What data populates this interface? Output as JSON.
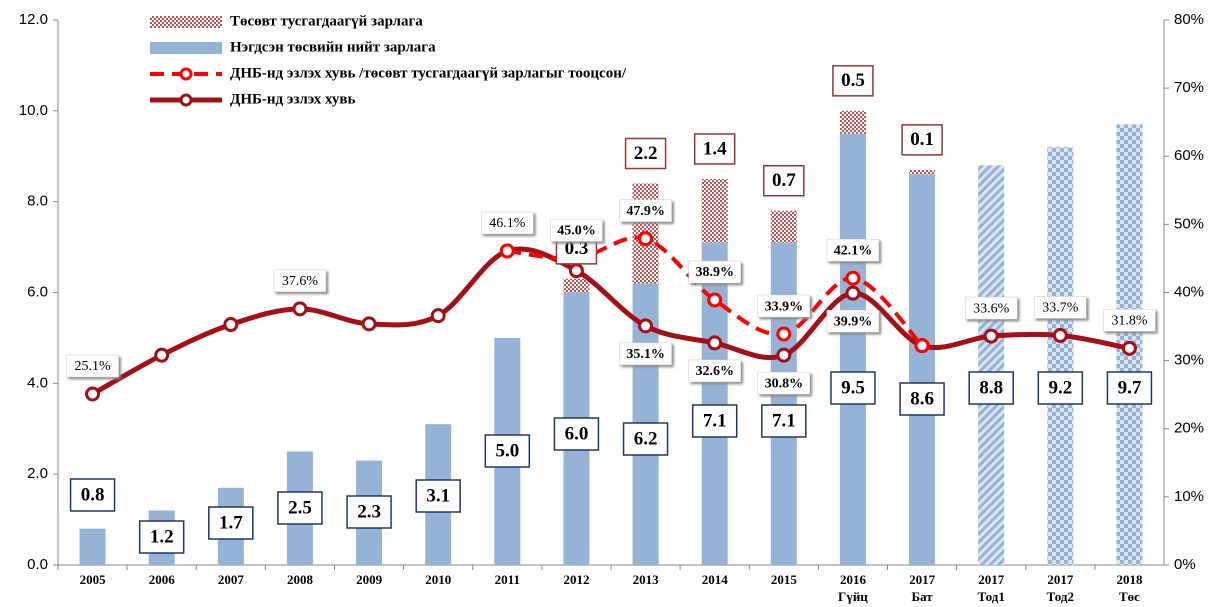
{
  "chart_data": {
    "type": "bar_line",
    "categories": [
      [
        "2005"
      ],
      [
        "2006"
      ],
      [
        "2007"
      ],
      [
        "2008"
      ],
      [
        "2009"
      ],
      [
        "2010"
      ],
      [
        "2011"
      ],
      [
        "2012"
      ],
      [
        "2013"
      ],
      [
        "2014"
      ],
      [
        "2015"
      ],
      [
        "2016",
        "Гүйц"
      ],
      [
        "2017",
        "Бат"
      ],
      [
        "2017",
        "Тод1"
      ],
      [
        "2017",
        "Тод2"
      ],
      [
        "2018",
        "Төс"
      ]
    ],
    "ylim": [
      0,
      12
    ],
    "yticks": [
      {
        "value": 0,
        "label": "0.0"
      },
      {
        "value": 2,
        "label": "2.0"
      },
      {
        "value": 4,
        "label": "4.0"
      },
      {
        "value": 6,
        "label": "6.0"
      },
      {
        "value": 8,
        "label": "8.0"
      },
      {
        "value": 10,
        "label": "10.0"
      },
      {
        "value": 12,
        "label": "12.0"
      }
    ],
    "y2lim": [
      0,
      80
    ],
    "y2ticks": [
      {
        "value": 0,
        "label": "0%"
      },
      {
        "value": 10,
        "label": "10%"
      },
      {
        "value": 20,
        "label": "20%"
      },
      {
        "value": 30,
        "label": "30%"
      },
      {
        "value": 40,
        "label": "40%"
      },
      {
        "value": 50,
        "label": "50%"
      },
      {
        "value": 60,
        "label": "60%"
      },
      {
        "value": 70,
        "label": "70%"
      },
      {
        "value": 80,
        "label": "80%"
      }
    ],
    "series": [
      {
        "name": "Төсөвт тусгагдаагүй зарлага",
        "kind": "stack",
        "color": "#c0504d",
        "values": [
          null,
          null,
          null,
          null,
          null,
          null,
          null,
          0.3,
          2.2,
          1.4,
          0.7,
          0.5,
          0.1,
          null,
          null,
          null
        ],
        "value_labels": [
          null,
          null,
          null,
          null,
          null,
          null,
          null,
          "0.3",
          "2.2",
          "1.4",
          "0.7",
          "0.5",
          "0.1",
          null,
          null,
          null
        ]
      },
      {
        "name": "Нэгдсэн төсвийн нийт зарлага",
        "kind": "bar",
        "color": "#95b3d7",
        "patterns": [
          "solid",
          "solid",
          "solid",
          "solid",
          "solid",
          "solid",
          "solid",
          "solid",
          "solid",
          "solid",
          "solid",
          "solid",
          "solid",
          "diagonal",
          "check",
          "check"
        ],
        "values": [
          0.8,
          1.2,
          1.7,
          2.5,
          2.3,
          3.1,
          5.0,
          6.0,
          6.2,
          7.1,
          7.1,
          9.5,
          8.6,
          8.8,
          9.2,
          9.7
        ],
        "value_labels": [
          "0.8",
          "1.2",
          "1.7",
          "2.5",
          "2.3",
          "3.1",
          "5.0",
          "6.0",
          "6.2",
          "7.1",
          "7.1",
          "9.5",
          "8.6",
          "8.8",
          "9.2",
          "9.7"
        ]
      },
      {
        "name": "ДНБ-нд эзлэх хувь /төсөвт тусгагдаагүй зарлагыг тооцсон/",
        "kind": "line",
        "dashed": true,
        "axis": "y2",
        "color": "#ff0000",
        "values": [
          null,
          null,
          null,
          null,
          null,
          null,
          46.1,
          45.0,
          47.9,
          38.9,
          33.9,
          42.1,
          32.2,
          null,
          null,
          null
        ],
        "value_labels": [
          null,
          null,
          null,
          null,
          null,
          null,
          null,
          "45.0%",
          "47.9%",
          "38.9%",
          "33.9%",
          "42.1%",
          null,
          null,
          null,
          null
        ]
      },
      {
        "name": "ДНБ-нд эзлэх хувь",
        "kind": "line",
        "dashed": false,
        "axis": "y2",
        "color": "#a50f15",
        "values": [
          25.1,
          30.8,
          35.3,
          37.6,
          35.4,
          36.6,
          46.1,
          43.2,
          35.1,
          32.6,
          30.8,
          39.9,
          32.2,
          33.6,
          33.7,
          31.8
        ],
        "value_labels": [
          "25.1%",
          null,
          null,
          "37.6%",
          null,
          null,
          "46.1%",
          null,
          "35.1%",
          "32.6%",
          "30.8%",
          "39.9%",
          null,
          "33.6%",
          "33.7%",
          "31.8%"
        ]
      }
    ]
  }
}
